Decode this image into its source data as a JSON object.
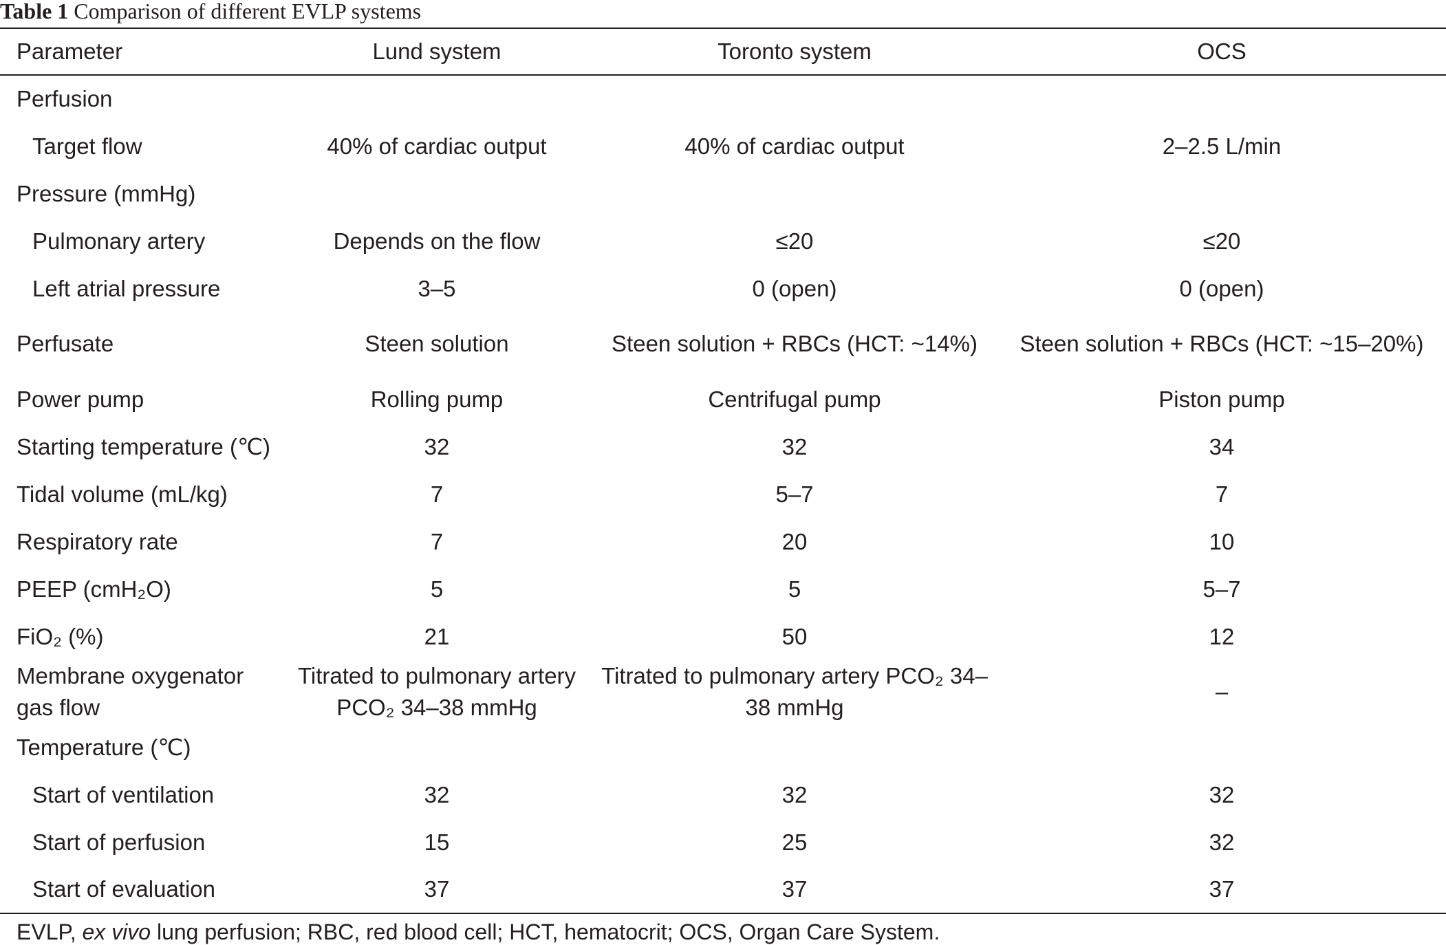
{
  "caption": {
    "label": "Table 1",
    "text": "Comparison of different EVLP systems"
  },
  "table": {
    "headers": [
      "Parameter",
      "Lund system",
      "Toronto system",
      "OCS"
    ],
    "rows": [
      {
        "parameter": "Perfusion",
        "indent": false,
        "values": [
          "",
          "",
          ""
        ]
      },
      {
        "parameter": "Target flow",
        "indent": true,
        "values": [
          "40% of cardiac output",
          "40% of cardiac output",
          "2–2.5 L/min"
        ]
      },
      {
        "parameter": "Pressure (mmHg)",
        "indent": false,
        "values": [
          "",
          "",
          ""
        ]
      },
      {
        "parameter": "Pulmonary artery",
        "indent": true,
        "values": [
          "Depends on the flow",
          "≤20",
          "≤20"
        ]
      },
      {
        "parameter": "Left atrial pressure",
        "indent": true,
        "values": [
          "3–5",
          "0 (open)",
          "0 (open)"
        ]
      },
      {
        "parameter": "Perfusate",
        "indent": false,
        "values": [
          "Steen solution",
          "Steen solution + RBCs (HCT: ~14%)",
          "Steen solution + RBCs (HCT: ~15–20%)"
        ]
      },
      {
        "parameter": "Power pump",
        "indent": false,
        "values": [
          "Rolling pump",
          "Centrifugal pump",
          "Piston pump"
        ]
      },
      {
        "parameter": "Starting temperature (℃)",
        "indent": false,
        "values": [
          "32",
          "32",
          "34"
        ]
      },
      {
        "parameter": "Tidal volume (mL/kg)",
        "indent": false,
        "values": [
          "7",
          "5–7",
          "7"
        ]
      },
      {
        "parameter": "Respiratory rate",
        "indent": false,
        "values": [
          "7",
          "20",
          "10"
        ]
      },
      {
        "parameter": "PEEP (cmH₂O)",
        "indent": false,
        "values": [
          "5",
          "5",
          "5–7"
        ]
      },
      {
        "parameter": "FiO₂ (%)",
        "indent": false,
        "values": [
          "21",
          "50",
          "12"
        ]
      },
      {
        "parameter": "Membrane oxygenator gas flow",
        "indent": false,
        "values": [
          "Titrated to pulmonary artery PCO₂ 34–38 mmHg",
          "Titrated to pulmonary artery PCO₂ 34–38 mmHg",
          "–"
        ]
      },
      {
        "parameter": "Temperature (℃)",
        "indent": false,
        "values": [
          "",
          "",
          ""
        ]
      },
      {
        "parameter": "Start of ventilation",
        "indent": true,
        "values": [
          "32",
          "32",
          "32"
        ]
      },
      {
        "parameter": "Start of perfusion",
        "indent": true,
        "values": [
          "15",
          "25",
          "32"
        ]
      },
      {
        "parameter": "Start of evaluation",
        "indent": true,
        "values": [
          "37",
          "37",
          "37"
        ]
      }
    ]
  },
  "footnote": {
    "prefix": "EVLP,",
    "italic": "ex vivo",
    "rest": "lung perfusion; RBC, red blood cell; HCT, hematocrit; OCS, Organ Care System."
  }
}
